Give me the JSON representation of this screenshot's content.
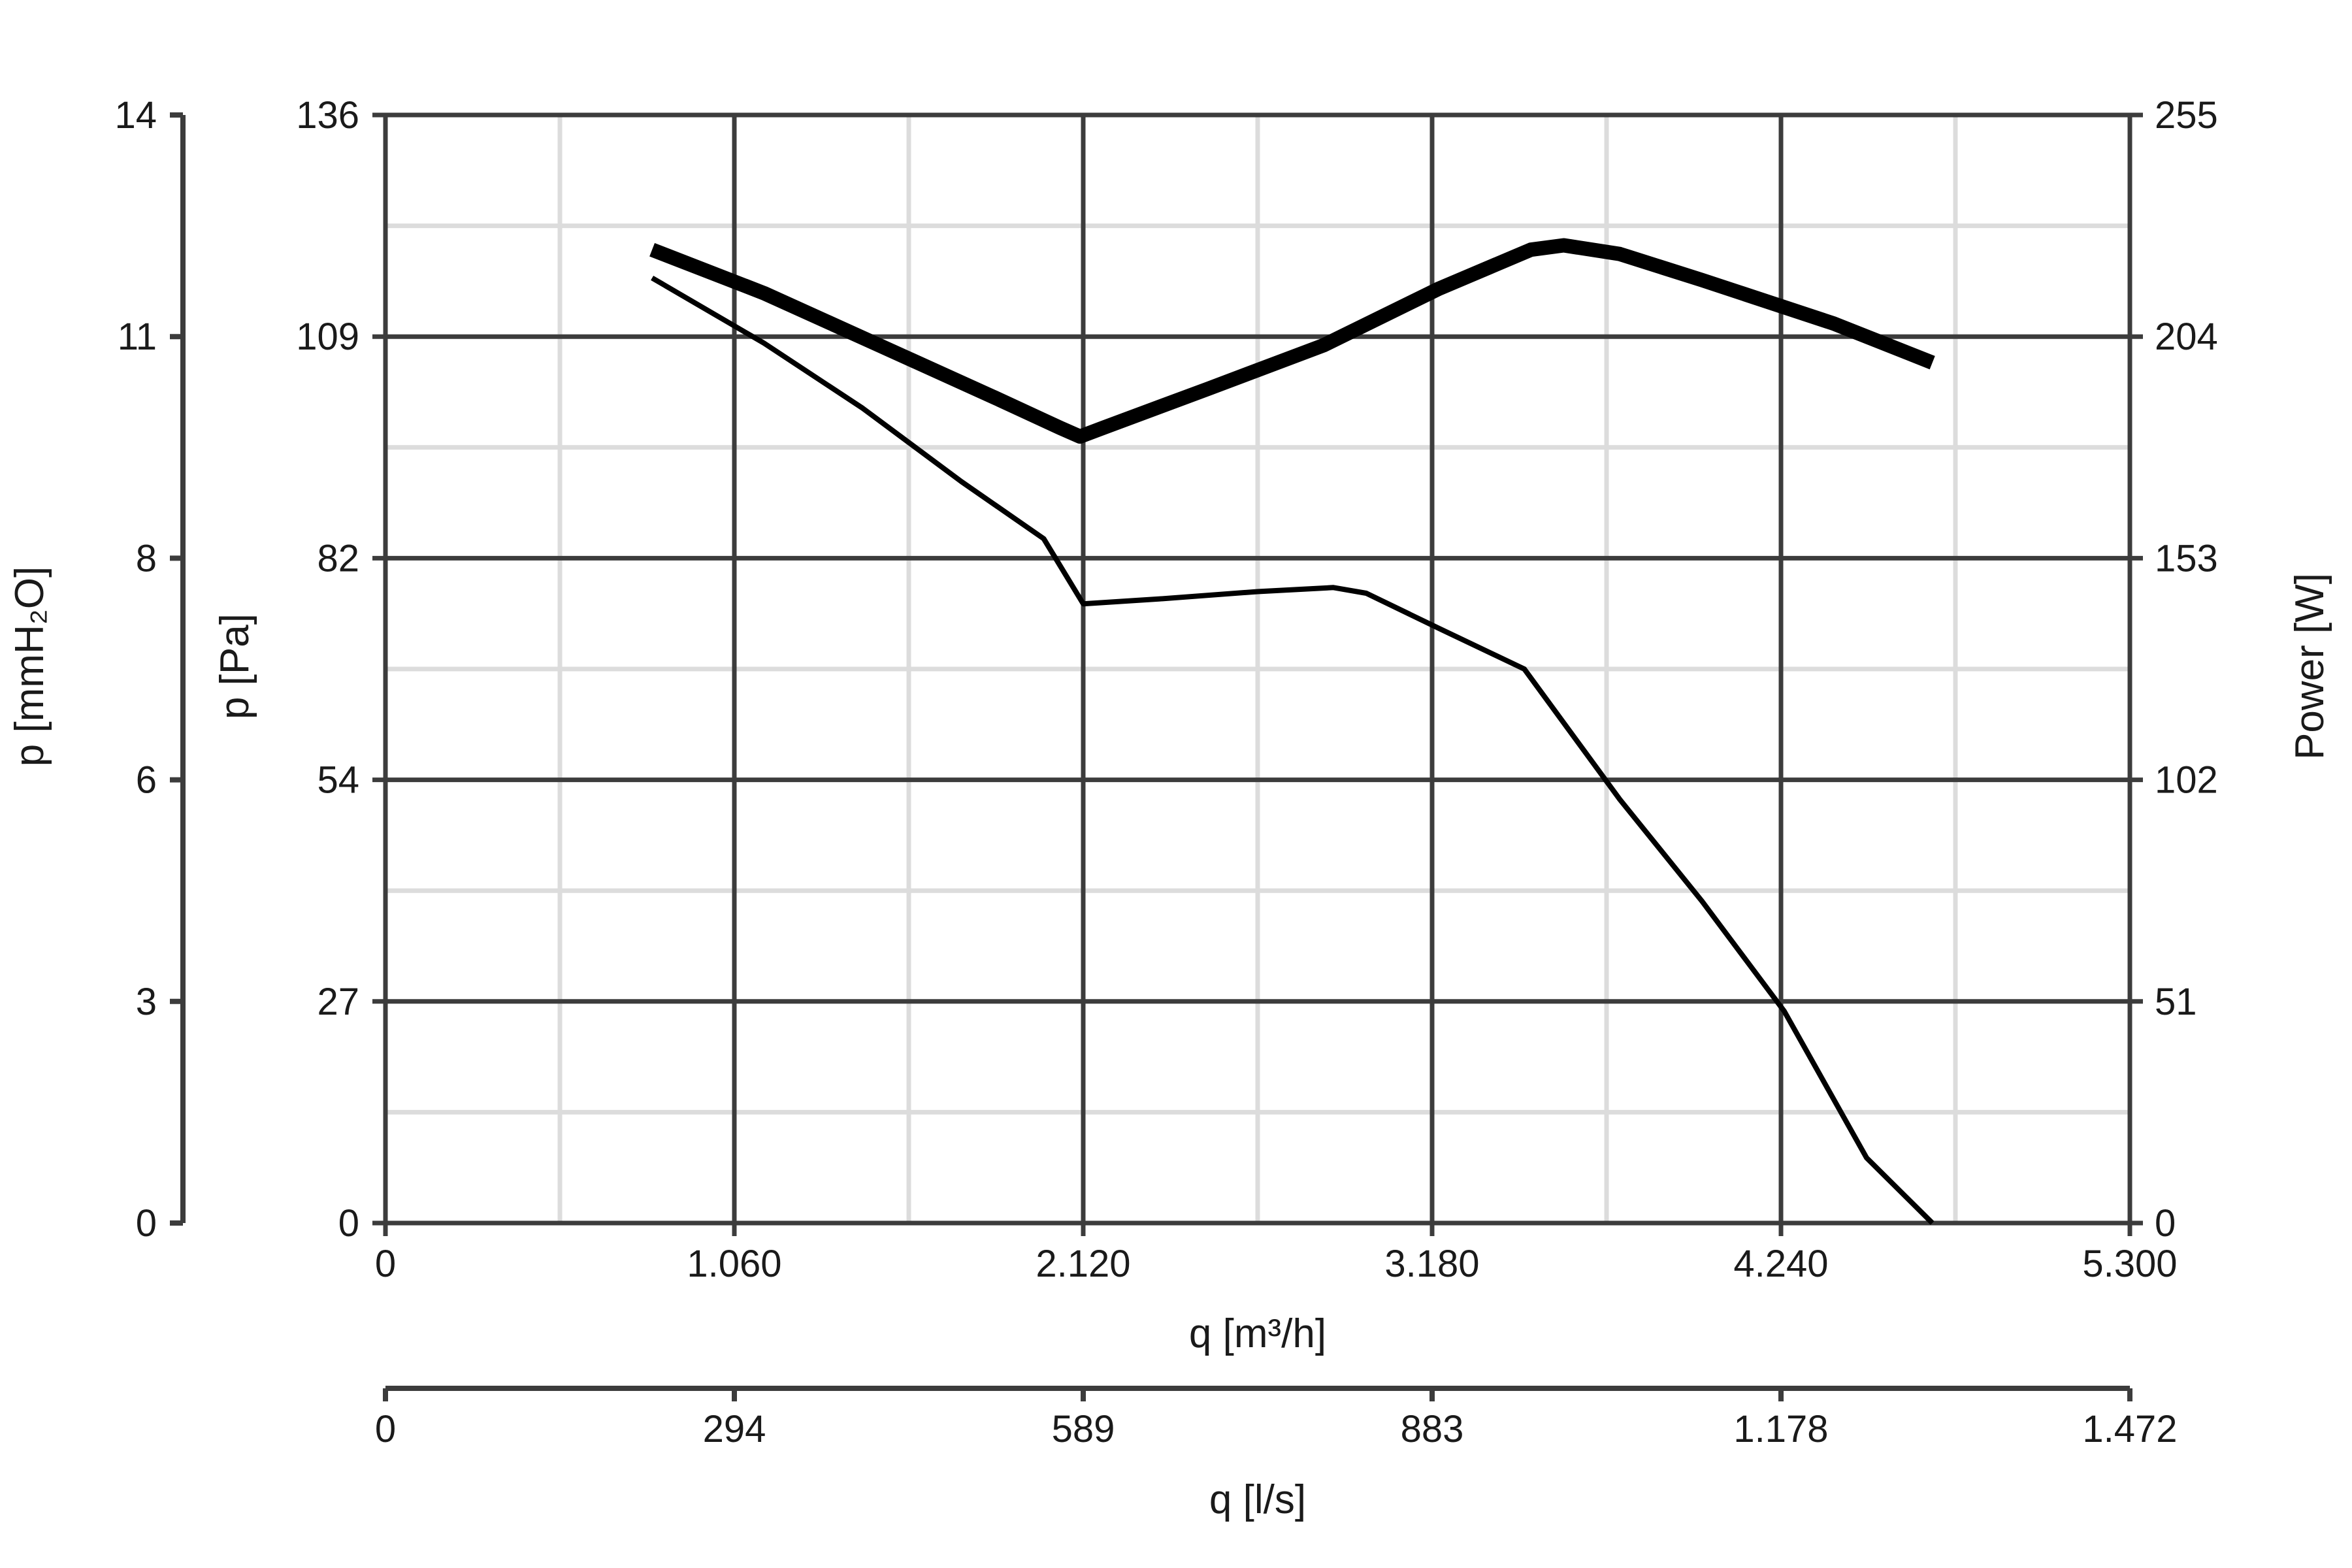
{
  "chart_data": {
    "type": "line",
    "xlabel": "q [m³/h]",
    "x2label": "q [l/s]",
    "ylabel_left_outer": "p [mmH₂O]",
    "ylabel_left_inner": "p [Pa]",
    "ylabel_right": "Power [W]",
    "xlim": [
      0,
      5300
    ],
    "ylim": [
      0,
      136
    ],
    "y_right_lim": [
      0,
      255
    ],
    "x_ticks": [
      "0",
      "1.060",
      "2.120",
      "3.180",
      "4.240",
      "5.300"
    ],
    "x2_ticks": [
      "0",
      "294",
      "589",
      "883",
      "1.178",
      "1.472"
    ],
    "y_pa_ticks": [
      "0",
      "27",
      "54",
      "82",
      "109",
      "136"
    ],
    "y_mmh2o_ticks": [
      "0",
      "3",
      "6",
      "8",
      "11",
      "14"
    ],
    "y_power_ticks": [
      "0",
      "51",
      "102",
      "153",
      "204",
      "255"
    ],
    "grid": true,
    "series": [
      {
        "axis": "right",
        "line": "thick",
        "x": [
          810,
          1150,
          1500,
          1850,
          2050,
          2110,
          2180,
          2500,
          2850,
          3200,
          3480,
          3580,
          3750,
          4000,
          4400,
          4700
        ],
        "values": [
          224,
          214,
          202,
          190,
          183,
          181,
          183,
          192,
          202,
          215,
          224,
          225,
          223,
          217,
          207,
          198
        ]
      },
      {
        "axis": "left",
        "line": "thin",
        "x": [
          810,
          1150,
          1450,
          1750,
          2000,
          2120,
          2350,
          2650,
          2880,
          2980,
          3200,
          3460,
          3750,
          4000,
          4250,
          4500,
          4700
        ],
        "values": [
          116,
          108,
          100,
          91,
          84,
          76,
          76.6,
          77.5,
          78,
          77.3,
          73,
          68,
          52,
          39.5,
          26,
          8,
          0
        ]
      }
    ]
  }
}
